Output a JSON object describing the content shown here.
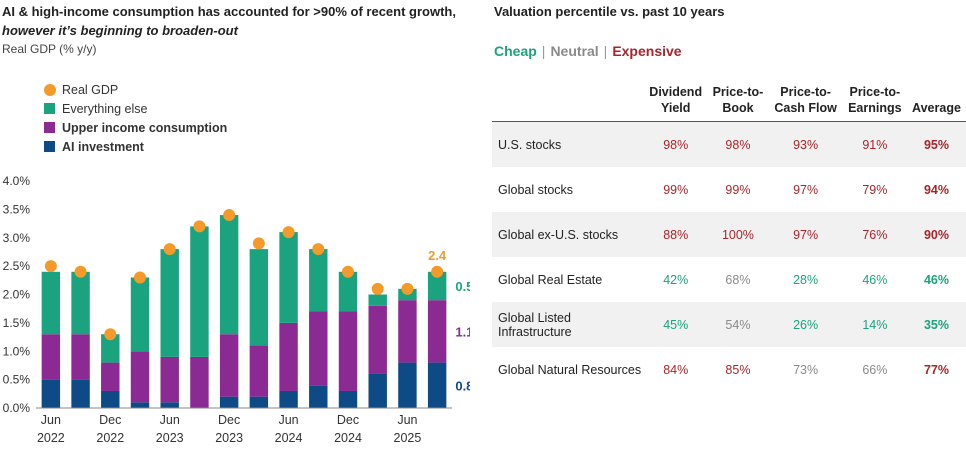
{
  "left": {
    "title_line1": "AI & high-income consumption has accounted for >90% of recent growth,",
    "title_line2": "however it’s beginning to broaden-out",
    "subtitle": "Real GDP (% y/y)",
    "legend": [
      {
        "label": "Real GDP",
        "color": "#f39a2b",
        "shape": "dot",
        "bold": false
      },
      {
        "label": "Everything else",
        "color": "#1aa37e",
        "shape": "square",
        "bold": false
      },
      {
        "label": "Upper income consumption",
        "color": "#8a2a92",
        "shape": "square",
        "bold": true
      },
      {
        "label": "AI investment",
        "color": "#0e4a86",
        "shape": "square",
        "bold": true
      }
    ]
  },
  "chart_data": {
    "type": "bar",
    "stacked": true,
    "categories": [
      "Jun 2022",
      "Sep 2022",
      "Dec 2022",
      "Mar 2023",
      "Jun 2023",
      "Sep 2023",
      "Dec 2023",
      "Mar 2024",
      "Jun 2024",
      "Sep 2024",
      "Dec 2024",
      "Mar 2025",
      "Jun 2025",
      "Sep 2025"
    ],
    "x_tick_labels": [
      {
        "index": 0,
        "line1": "Jun",
        "line2": "2022"
      },
      {
        "index": 2,
        "line1": "Dec",
        "line2": "2022"
      },
      {
        "index": 4,
        "line1": "Jun",
        "line2": "2023"
      },
      {
        "index": 6,
        "line1": "Dec",
        "line2": "2023"
      },
      {
        "index": 8,
        "line1": "Jun",
        "line2": "2024"
      },
      {
        "index": 10,
        "line1": "Dec",
        "line2": "2024"
      },
      {
        "index": 12,
        "line1": "Jun",
        "line2": "2025"
      }
    ],
    "series": [
      {
        "name": "AI investment",
        "color": "#0e4a86",
        "values": [
          0.5,
          0.5,
          0.3,
          0.1,
          0.1,
          0.0,
          0.2,
          0.2,
          0.3,
          0.4,
          0.3,
          0.6,
          0.8,
          0.8
        ]
      },
      {
        "name": "Upper income consumption",
        "color": "#8a2a92",
        "values": [
          0.8,
          0.8,
          0.5,
          0.9,
          0.8,
          0.9,
          1.1,
          0.9,
          1.2,
          1.3,
          1.4,
          1.2,
          1.1,
          1.1
        ]
      },
      {
        "name": "Everything else",
        "color": "#1aa37e",
        "values": [
          1.1,
          1.1,
          0.5,
          1.3,
          1.9,
          2.3,
          2.1,
          1.7,
          1.6,
          1.1,
          0.7,
          0.2,
          0.2,
          0.5
        ]
      }
    ],
    "line": {
      "name": "Real GDP",
      "color": "#f39a2b",
      "values": [
        2.5,
        2.4,
        1.3,
        2.3,
        2.8,
        3.2,
        3.4,
        2.9,
        3.1,
        2.8,
        2.4,
        2.1,
        2.1,
        2.4
      ]
    },
    "ylim": [
      0,
      4.0
    ],
    "y_ticks": [
      "0.0%",
      "0.5%",
      "1.0%",
      "1.5%",
      "2.0%",
      "2.5%",
      "3.0%",
      "3.5%",
      "4.0%"
    ],
    "annotations": [
      {
        "text": "2.4",
        "color": "#f39a2b"
      },
      {
        "text": "0.5",
        "color": "#1aa37e"
      },
      {
        "text": "1.1",
        "color": "#8a2a92"
      },
      {
        "text": "0.8",
        "color": "#0e4a86"
      }
    ],
    "grid": false
  },
  "right": {
    "title": "Valuation percentile vs. past 10 years",
    "key": {
      "cheap": "Cheap",
      "neutral": "Neutral",
      "expensive": "Expensive",
      "separator": "|"
    },
    "colors": {
      "cheap": "#1aa37e",
      "neutral": "#8a8a8a",
      "expensive": "#a8262b"
    },
    "headers": [
      {
        "line1": "",
        "line2": ""
      },
      {
        "line1": "Dividend",
        "line2": "Yield"
      },
      {
        "line1": "Price-to-",
        "line2": "Book"
      },
      {
        "line1": "Price-to-",
        "line2": "Cash Flow"
      },
      {
        "line1": "Price-to-",
        "line2": "Earnings"
      },
      {
        "line1": "",
        "line2": "Average"
      }
    ],
    "rows": [
      {
        "name": "U.S. stocks",
        "cells": [
          {
            "v": "98%",
            "c": "expensive"
          },
          {
            "v": "98%",
            "c": "expensive"
          },
          {
            "v": "93%",
            "c": "expensive"
          },
          {
            "v": "91%",
            "c": "expensive"
          },
          {
            "v": "95%",
            "c": "expensive"
          }
        ]
      },
      {
        "name": "Global stocks",
        "cells": [
          {
            "v": "99%",
            "c": "expensive"
          },
          {
            "v": "99%",
            "c": "expensive"
          },
          {
            "v": "97%",
            "c": "expensive"
          },
          {
            "v": "79%",
            "c": "expensive"
          },
          {
            "v": "94%",
            "c": "expensive"
          }
        ]
      },
      {
        "name": "Global ex-U.S. stocks",
        "cells": [
          {
            "v": "88%",
            "c": "expensive"
          },
          {
            "v": "100%",
            "c": "expensive"
          },
          {
            "v": "97%",
            "c": "expensive"
          },
          {
            "v": "76%",
            "c": "expensive"
          },
          {
            "v": "90%",
            "c": "expensive"
          }
        ]
      },
      {
        "name": "Global Real Estate",
        "cells": [
          {
            "v": "42%",
            "c": "cheap"
          },
          {
            "v": "68%",
            "c": "neutral"
          },
          {
            "v": "28%",
            "c": "cheap"
          },
          {
            "v": "46%",
            "c": "cheap"
          },
          {
            "v": "46%",
            "c": "cheap"
          }
        ]
      },
      {
        "name": "Global Listed Infrastructure",
        "cells": [
          {
            "v": "45%",
            "c": "cheap"
          },
          {
            "v": "54%",
            "c": "neutral"
          },
          {
            "v": "26%",
            "c": "cheap"
          },
          {
            "v": "14%",
            "c": "cheap"
          },
          {
            "v": "35%",
            "c": "cheap"
          }
        ]
      },
      {
        "name": "Global Natural Resources",
        "cells": [
          {
            "v": "84%",
            "c": "expensive"
          },
          {
            "v": "85%",
            "c": "expensive"
          },
          {
            "v": "73%",
            "c": "neutral"
          },
          {
            "v": "66%",
            "c": "neutral"
          },
          {
            "v": "77%",
            "c": "expensive"
          }
        ]
      }
    ]
  }
}
